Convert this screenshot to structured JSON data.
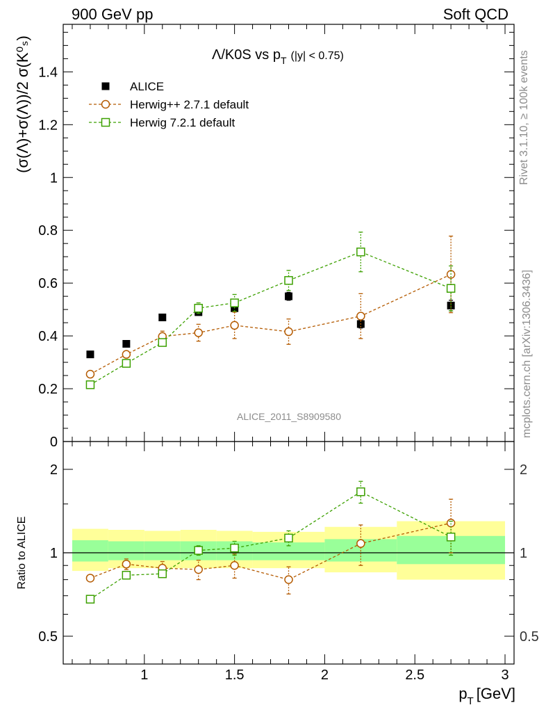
{
  "header": {
    "left": "900 GeV pp",
    "right": "Soft QCD"
  },
  "side_labels": {
    "rivet": "Rivet 3.1.10, ≥ 100k events",
    "mcplots": "mcplots.cern.ch [arXiv:1306.3436]"
  },
  "chart_data": [
    {
      "type": "scatter",
      "panel": "main",
      "title_main": "Λ/K0S vs p",
      "title_sub": "T",
      "title_cut": "(|y| < 0.75)",
      "ylabel": "(σ(Λ)+σ(Λ))/2 σ(K⁰ₛ)",
      "analysis_label": "ALICE_2011_S8909580",
      "xlim": [
        0.55,
        3.05
      ],
      "ylim": [
        0,
        1.58
      ],
      "yticks": [
        0,
        0.2,
        0.4,
        0.6,
        0.8,
        1,
        1.2,
        1.4
      ],
      "ytick_labels": [
        "0",
        "0.2",
        "0.4",
        "0.6",
        "0.8",
        "1",
        "1.2",
        "1.4"
      ],
      "grid": false,
      "legend_position": "top-left",
      "series": [
        {
          "name": "ALICE",
          "marker": "filled-square",
          "color": "#000000",
          "x": [
            0.7,
            0.9,
            1.1,
            1.3,
            1.5,
            1.8,
            2.2,
            2.7
          ],
          "y": [
            0.33,
            0.37,
            0.47,
            0.49,
            0.505,
            0.55,
            0.445,
            0.515
          ],
          "err": [
            0.01,
            0.01,
            0.01,
            0.01,
            0.01,
            0.015,
            0.015,
            0.02
          ]
        },
        {
          "name": "Herwig++ 2.7.1 default",
          "marker": "open-circle",
          "color": "#b45a00",
          "x": [
            0.7,
            0.9,
            1.1,
            1.3,
            1.5,
            1.8,
            2.2,
            2.7
          ],
          "y": [
            0.255,
            0.33,
            0.398,
            0.412,
            0.44,
            0.416,
            0.475,
            0.633
          ],
          "err": [
            0.006,
            0.012,
            0.02,
            0.032,
            0.05,
            0.048,
            0.085,
            0.145
          ]
        },
        {
          "name": "Herwig 7.2.1 default",
          "marker": "open-square",
          "color": "#3ca000",
          "x": [
            0.7,
            0.9,
            1.1,
            1.3,
            1.5,
            1.8,
            2.2,
            2.7
          ],
          "y": [
            0.215,
            0.296,
            0.375,
            0.505,
            0.525,
            0.61,
            0.718,
            0.58
          ],
          "err": [
            0.006,
            0.008,
            0.012,
            0.02,
            0.032,
            0.038,
            0.075,
            0.085
          ]
        }
      ]
    },
    {
      "type": "scatter",
      "panel": "ratio",
      "ylabel": "Ratio to ALICE",
      "xlabel": "p",
      "xlabel_sub": "T",
      "xlabel_unit": "[GeV]",
      "xlim": [
        0.55,
        3.05
      ],
      "ylim": [
        0.5,
        2.0
      ],
      "ylog": true,
      "yticks": [
        0.5,
        1,
        2
      ],
      "ytick_labels": [
        "0.5",
        "1",
        "2"
      ],
      "xticks": [
        1,
        1.5,
        2,
        2.5,
        3
      ],
      "xtick_labels": [
        "1",
        "1.5",
        "2",
        "2.5",
        "3"
      ],
      "reference_line": 1,
      "bands": {
        "bins": [
          [
            0.6,
            0.8
          ],
          [
            0.8,
            1.0
          ],
          [
            1.0,
            1.2
          ],
          [
            1.2,
            1.4
          ],
          [
            1.4,
            1.6
          ],
          [
            1.6,
            2.0
          ],
          [
            2.0,
            2.4
          ],
          [
            2.4,
            3.0
          ]
        ],
        "yellow": [
          [
            0.86,
            1.22
          ],
          [
            0.88,
            1.21
          ],
          [
            0.88,
            1.2
          ],
          [
            0.88,
            1.21
          ],
          [
            0.88,
            1.2
          ],
          [
            0.88,
            1.19
          ],
          [
            0.85,
            1.24
          ],
          [
            0.8,
            1.3
          ]
        ],
        "green": [
          [
            0.93,
            1.11
          ],
          [
            0.94,
            1.1
          ],
          [
            0.94,
            1.1
          ],
          [
            0.94,
            1.1
          ],
          [
            0.94,
            1.1
          ],
          [
            0.94,
            1.09
          ],
          [
            0.93,
            1.12
          ],
          [
            0.91,
            1.15
          ]
        ],
        "yellow_color": "#ffff99",
        "green_color": "#99ff99"
      },
      "series": [
        {
          "name": "Herwig++ 2.7.1 default",
          "marker": "open-circle",
          "color": "#b45a00",
          "x": [
            0.7,
            0.9,
            1.1,
            1.3,
            1.5,
            1.8,
            2.2,
            2.7
          ],
          "y": [
            0.81,
            0.91,
            0.88,
            0.87,
            0.9,
            0.8,
            1.08,
            1.28
          ],
          "err": [
            0.02,
            0.04,
            0.05,
            0.07,
            0.09,
            0.09,
            0.18,
            0.28
          ]
        },
        {
          "name": "Herwig 7.2.1 default",
          "marker": "open-square",
          "color": "#3ca000",
          "x": [
            0.7,
            0.9,
            1.1,
            1.3,
            1.5,
            1.8,
            2.2,
            2.7
          ],
          "y": [
            0.68,
            0.83,
            0.84,
            1.02,
            1.04,
            1.13,
            1.66,
            1.14
          ],
          "err": [
            0.015,
            0.02,
            0.025,
            0.04,
            0.06,
            0.07,
            0.15,
            0.16
          ]
        }
      ]
    }
  ]
}
